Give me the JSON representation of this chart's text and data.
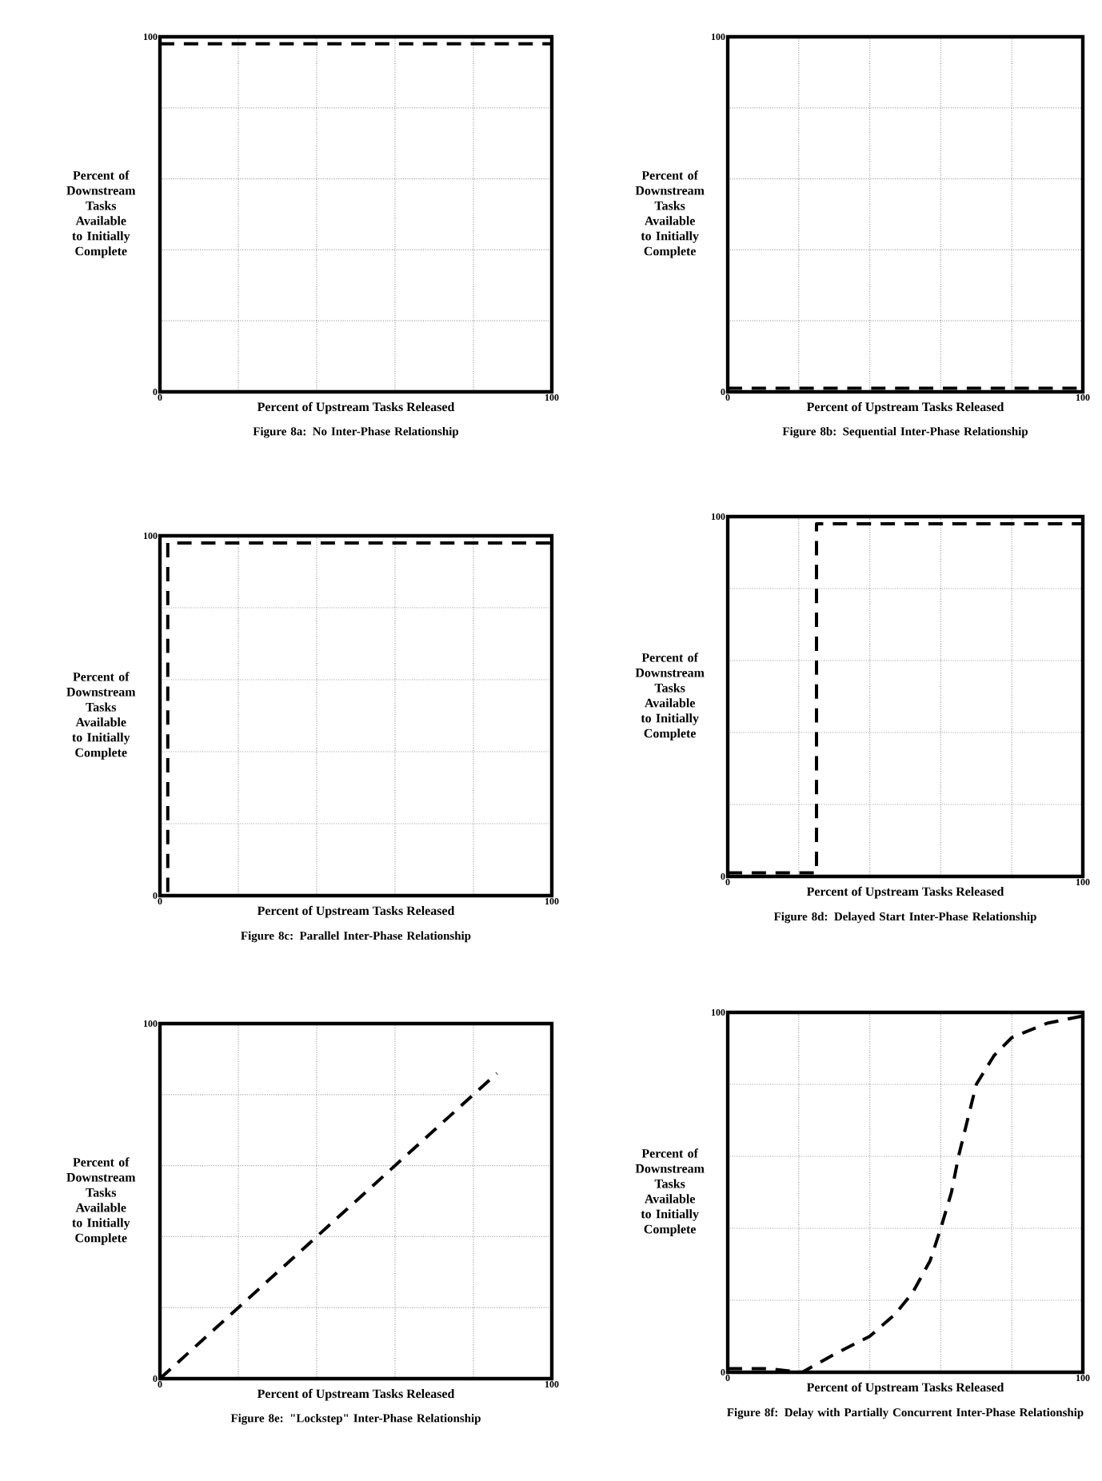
{
  "chart_data": [
    {
      "type": "line",
      "title": "Figure 8a:  No Inter-Phase Relationship",
      "xlabel": "Percent of Upstream Tasks Released",
      "ylabel": "Percent of Downstream Tasks Available to Initially Complete",
      "xlim": [
        0,
        100
      ],
      "ylim": [
        0,
        100
      ],
      "xticks": [
        0,
        {
          "value": 20,
          "label": null
        },
        {
          "value": 40,
          "label": null
        },
        {
          "value": 60,
          "label": null
        },
        {
          "value": 80,
          "label": null
        },
        100
      ],
      "yticks": [
        0,
        {
          "value": 20,
          "label": null
        },
        {
          "value": 40,
          "label": null
        },
        {
          "value": 60,
          "label": null
        },
        {
          "value": 80,
          "label": null
        },
        100
      ],
      "grid": true,
      "line_style": "dashed",
      "series": [
        {
          "color": "#000000",
          "x": [
            0,
            100
          ],
          "values": [
            98,
            98
          ]
        }
      ]
    },
    {
      "type": "line",
      "title": "Figure 8b:  Sequential Inter-Phase Relationship",
      "xlabel": "Percent of Upstream Tasks Released",
      "ylabel": "Percent of Downstream Tasks Available to Initially Complete",
      "xlim": [
        0,
        100
      ],
      "ylim": [
        0,
        100
      ],
      "xticks": [
        0,
        {
          "value": 20,
          "label": null
        },
        {
          "value": 40,
          "label": null
        },
        {
          "value": 60,
          "label": null
        },
        {
          "value": 80,
          "label": null
        },
        100
      ],
      "yticks": [
        0,
        {
          "value": 20,
          "label": null
        },
        {
          "value": 40,
          "label": null
        },
        {
          "value": 60,
          "label": null
        },
        {
          "value": 80,
          "label": null
        },
        100
      ],
      "grid": true,
      "line_style": "dashed",
      "series": [
        {
          "color": "#000000",
          "x": [
            0,
            100
          ],
          "values": [
            1,
            1
          ]
        }
      ]
    },
    {
      "type": "line",
      "title": "Figure 8c:  Parallel Inter-Phase Relationship",
      "xlabel": "Percent of Upstream Tasks Released",
      "ylabel": "Percent of Downstream Tasks Available to Initially Complete",
      "xlim": [
        0,
        100
      ],
      "ylim": [
        0,
        100
      ],
      "xticks": [
        0,
        {
          "value": 20,
          "label": null
        },
        {
          "value": 40,
          "label": null
        },
        {
          "value": 60,
          "label": null
        },
        {
          "value": 80,
          "label": null
        },
        100
      ],
      "yticks": [
        0,
        {
          "value": 20,
          "label": null
        },
        {
          "value": 40,
          "label": null
        },
        {
          "value": 60,
          "label": null
        },
        {
          "value": 80,
          "label": null
        },
        100
      ],
      "grid": true,
      "line_style": "dashed",
      "series": [
        {
          "color": "#000000",
          "x": [
            2,
            2,
            100
          ],
          "values": [
            1,
            98,
            98
          ]
        }
      ]
    },
    {
      "type": "line",
      "title": "Figure 8d:  Delayed Start Inter-Phase Relationship",
      "xlabel": "Percent of Upstream Tasks Released",
      "ylabel": "Percent of Downstream Tasks Available to Initially Complete",
      "xlim": [
        0,
        100
      ],
      "ylim": [
        0,
        100
      ],
      "xticks": [
        0,
        {
          "value": 20,
          "label": null
        },
        {
          "value": 40,
          "label": null
        },
        {
          "value": 60,
          "label": null
        },
        {
          "value": 80,
          "label": null
        },
        100
      ],
      "yticks": [
        0,
        {
          "value": 20,
          "label": null
        },
        {
          "value": 40,
          "label": null
        },
        {
          "value": 60,
          "label": null
        },
        {
          "value": 80,
          "label": null
        },
        100
      ],
      "grid": true,
      "line_style": "dashed",
      "series": [
        {
          "color": "#000000",
          "x": [
            0,
            25,
            25,
            100
          ],
          "values": [
            1,
            1,
            98,
            98
          ]
        }
      ]
    },
    {
      "type": "line",
      "title": "Figure 8e:  \"Lockstep\" Inter-Phase Relationship",
      "xlabel": "Percent of Upstream Tasks Released",
      "ylabel": "Percent of Downstream Tasks Available to Initially Complete",
      "xlim": [
        0,
        100
      ],
      "ylim": [
        0,
        100
      ],
      "xticks": [
        0,
        {
          "value": 20,
          "label": null
        },
        {
          "value": 40,
          "label": null
        },
        {
          "value": 60,
          "label": null
        },
        {
          "value": 80,
          "label": null
        },
        100
      ],
      "yticks": [
        0,
        {
          "value": 20,
          "label": null
        },
        {
          "value": 40,
          "label": null
        },
        {
          "value": 60,
          "label": null
        },
        {
          "value": 80,
          "label": null
        },
        100
      ],
      "grid": true,
      "line_style": "dashed",
      "series": [
        {
          "color": "#000000",
          "x": [
            0,
            86
          ],
          "values": [
            0,
            86
          ]
        }
      ]
    },
    {
      "type": "line",
      "title": "Figure 8f:  Delay with Partially Concurrent Inter-Phase Relationship",
      "xlabel": "Percent of Upstream Tasks Released",
      "ylabel": "Percent of Downstream Tasks Available to Initially Complete",
      "xlim": [
        0,
        100
      ],
      "ylim": [
        0,
        100
      ],
      "xticks": [
        0,
        {
          "value": 20,
          "label": null
        },
        {
          "value": 40,
          "label": null
        },
        {
          "value": 60,
          "label": null
        },
        {
          "value": 80,
          "label": null
        },
        100
      ],
      "yticks": [
        0,
        {
          "value": 20,
          "label": null
        },
        {
          "value": 40,
          "label": null
        },
        {
          "value": 60,
          "label": null
        },
        {
          "value": 80,
          "label": null
        },
        100
      ],
      "grid": true,
      "line_style": "dashed",
      "series": [
        {
          "color": "#000000",
          "x": [
            0,
            11,
            21,
            30,
            40,
            47,
            52,
            57,
            60,
            63,
            65,
            68,
            70,
            75,
            80,
            90,
            100
          ],
          "values": [
            1,
            1,
            0,
            5,
            10,
            16,
            22,
            31,
            40,
            50,
            60,
            72,
            80,
            88,
            93,
            97,
            99
          ]
        }
      ]
    }
  ]
}
